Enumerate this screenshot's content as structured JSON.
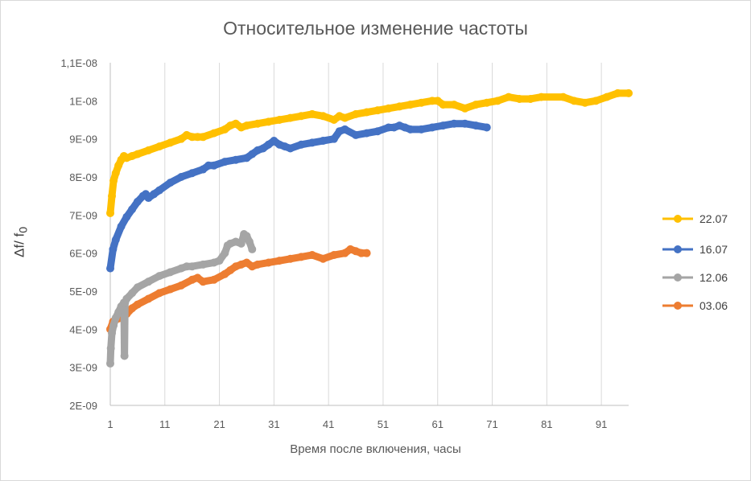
{
  "chart_data": {
    "type": "line",
    "title": "Относительное изменение частоты",
    "xlabel": "Время после включения, часы",
    "ylabel_main": "Δf/ f",
    "ylabel_sub": "0",
    "xlim": [
      1,
      96
    ],
    "ylim": [
      2e-09,
      1.1e-08
    ],
    "x_ticks": [
      1,
      11,
      21,
      31,
      41,
      51,
      61,
      71,
      81,
      91
    ],
    "x_tick_labels": [
      "1",
      "11",
      "21",
      "31",
      "41",
      "51",
      "61",
      "71",
      "81",
      "91"
    ],
    "y_ticks": [
      2e-09,
      3e-09,
      4e-09,
      5e-09,
      6e-09,
      7e-09,
      8e-09,
      9e-09,
      1e-08,
      1.1e-08
    ],
    "y_tick_labels": [
      "2E-09",
      "3E-09",
      "4E-09",
      "5E-09",
      "6E-09",
      "7E-09",
      "8E-09",
      "9E-09",
      "1E-08",
      "1,1E-08"
    ],
    "grid": "vertical",
    "legend_position": "right",
    "series": [
      {
        "name": "22.07",
        "color": "#FFC000",
        "x": [
          1,
          1.3,
          1.6,
          2,
          2.5,
          3,
          3.5,
          4,
          5,
          6,
          8,
          10,
          12,
          14,
          15,
          16,
          17,
          18,
          20,
          22,
          23,
          24,
          25,
          26,
          28,
          30,
          32,
          34,
          36,
          38,
          40,
          42,
          43,
          44,
          46,
          48,
          50,
          52,
          54,
          56,
          58,
          60,
          61,
          62,
          64,
          66,
          68,
          70,
          72,
          74,
          76,
          78,
          80,
          84,
          86,
          88,
          90,
          92,
          94,
          96
        ],
        "y": [
          7.05e-09,
          7.5e-09,
          7.9e-09,
          8.1e-09,
          8.3e-09,
          8.45e-09,
          8.55e-09,
          8.5e-09,
          8.55e-09,
          8.6e-09,
          8.7e-09,
          8.8e-09,
          8.9e-09,
          9e-09,
          9.1e-09,
          9.05e-09,
          9.05e-09,
          9.05e-09,
          9.15e-09,
          9.25e-09,
          9.35e-09,
          9.4e-09,
          9.3e-09,
          9.35e-09,
          9.4e-09,
          9.45e-09,
          9.5e-09,
          9.55e-09,
          9.6e-09,
          9.65e-09,
          9.6e-09,
          9.5e-09,
          9.6e-09,
          9.55e-09,
          9.65e-09,
          9.7e-09,
          9.75e-09,
          9.8e-09,
          9.85e-09,
          9.9e-09,
          9.95e-09,
          1e-08,
          1e-08,
          9.9e-09,
          9.9e-09,
          9.8e-09,
          9.9e-09,
          9.95e-09,
          1e-08,
          1.01e-08,
          1.005e-08,
          1.005e-08,
          1.01e-08,
          1.01e-08,
          1e-08,
          9.95e-09,
          1e-08,
          1.01e-08,
          1.02e-08,
          1.02e-08
        ]
      },
      {
        "name": "16.07",
        "color": "#4472C4",
        "x": [
          1,
          1.5,
          2,
          3,
          4,
          5,
          6,
          7,
          7.5,
          8,
          9,
          10,
          12,
          14,
          16,
          18,
          19,
          20,
          22,
          24,
          26,
          27,
          28,
          29,
          30,
          31,
          32,
          33,
          34,
          36,
          38,
          40,
          42,
          43,
          44,
          46,
          48,
          50,
          52,
          53,
          54,
          55,
          56,
          58,
          60,
          62,
          64,
          66,
          68,
          70
        ],
        "y": [
          5.6e-09,
          6.1e-09,
          6.35e-09,
          6.7e-09,
          6.95e-09,
          7.15e-09,
          7.35e-09,
          7.5e-09,
          7.55e-09,
          7.45e-09,
          7.55e-09,
          7.65e-09,
          7.85e-09,
          8e-09,
          8.1e-09,
          8.2e-09,
          8.3e-09,
          8.3e-09,
          8.4e-09,
          8.45e-09,
          8.5e-09,
          8.6e-09,
          8.7e-09,
          8.75e-09,
          8.85e-09,
          8.95e-09,
          8.85e-09,
          8.8e-09,
          8.75e-09,
          8.85e-09,
          8.9e-09,
          8.95e-09,
          9e-09,
          9.2e-09,
          9.25e-09,
          9.1e-09,
          9.15e-09,
          9.2e-09,
          9.3e-09,
          9.3e-09,
          9.35e-09,
          9.3e-09,
          9.25e-09,
          9.25e-09,
          9.3e-09,
          9.35e-09,
          9.4e-09,
          9.4e-09,
          9.35e-09,
          9.3e-09
        ]
      },
      {
        "name": "12.06",
        "color": "#A5A5A5",
        "x": [
          1,
          1.1,
          1.3,
          1.6,
          2,
          2.5,
          3,
          3.5,
          3.6,
          3.7,
          4,
          5,
          6,
          8,
          10,
          12,
          14,
          15,
          16,
          18,
          20,
          21,
          22,
          22.5,
          23,
          24,
          25,
          25.5,
          26,
          26.5,
          27
        ],
        "y": [
          3.1e-09,
          3.5e-09,
          3.9e-09,
          4.1e-09,
          4.3e-09,
          4.45e-09,
          4.6e-09,
          4.7e-09,
          3.3e-09,
          4.7e-09,
          4.8e-09,
          4.95e-09,
          5.1e-09,
          5.25e-09,
          5.4e-09,
          5.5e-09,
          5.6e-09,
          5.65e-09,
          5.65e-09,
          5.7e-09,
          5.75e-09,
          5.8e-09,
          6e-09,
          6.2e-09,
          6.25e-09,
          6.3e-09,
          6.25e-09,
          6.5e-09,
          6.45e-09,
          6.3e-09,
          6.1e-09
        ]
      },
      {
        "name": "03.06",
        "color": "#ED7D31",
        "x": [
          1,
          1.5,
          2,
          3,
          4,
          5,
          6,
          8,
          10,
          12,
          14,
          16,
          17,
          18,
          20,
          22,
          23,
          24,
          25,
          26,
          27,
          28,
          30,
          32,
          34,
          36,
          38,
          40,
          42,
          44,
          45,
          46,
          47,
          48
        ],
        "y": [
          4e-09,
          4.2e-09,
          4.25e-09,
          4.3e-09,
          4.4e-09,
          4.55e-09,
          4.65e-09,
          4.8e-09,
          4.95e-09,
          5.05e-09,
          5.15e-09,
          5.3e-09,
          5.35e-09,
          5.25e-09,
          5.3e-09,
          5.45e-09,
          5.55e-09,
          5.65e-09,
          5.7e-09,
          5.75e-09,
          5.65e-09,
          5.7e-09,
          5.75e-09,
          5.8e-09,
          5.85e-09,
          5.9e-09,
          5.95e-09,
          5.85e-09,
          5.95e-09,
          6e-09,
          6.1e-09,
          6.05e-09,
          6e-09,
          6e-09
        ]
      }
    ]
  }
}
